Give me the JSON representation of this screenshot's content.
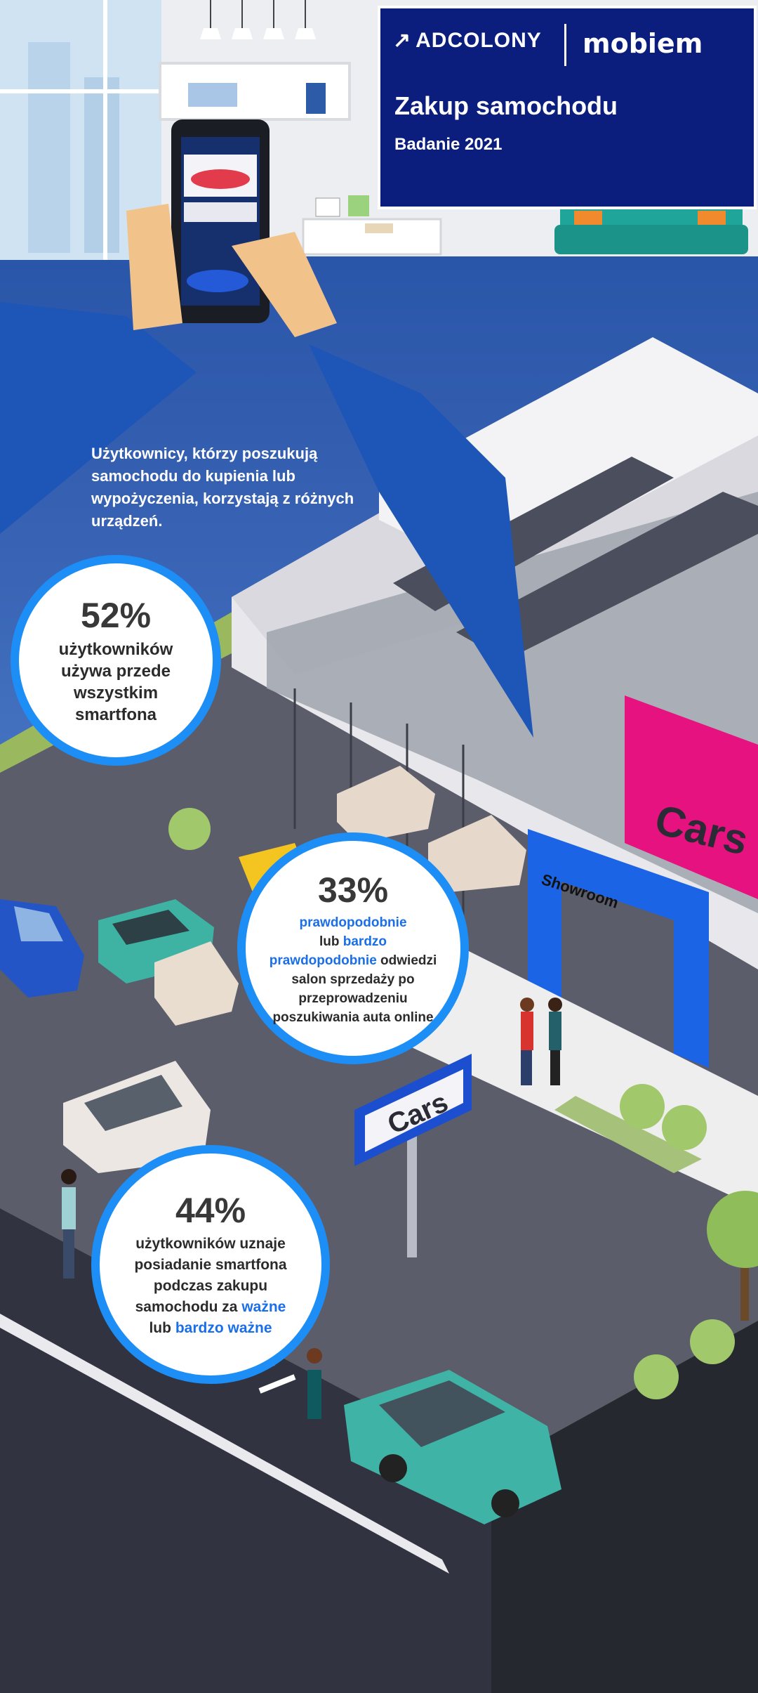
{
  "brand": {
    "logo_left": "ADCOLONY",
    "logo_right": "mobiem",
    "title": "Zakup samochodu",
    "subtitle": "Badanie 2021"
  },
  "intro": {
    "text": "Użytkownicy, którzy poszukują samochodu do kupienia lub wypożyczenia, korzystają z różnych urządzeń."
  },
  "stats": [
    {
      "value": "52%",
      "text": "użytkowników używa przede wszystkim smartfona"
    },
    {
      "value": "33%",
      "text_before": "prawdopodobnie",
      "text_mid1": "lub",
      "text_highlight": "bardzo prawdopodobnie",
      "text_after": "odwiedzi salon sprzedaży po przeprowadzeniu poszukiwania auta online"
    },
    {
      "value": "44%",
      "text_before": "użytkowników uznaje posiadanie smartfona podczas zakupu samochodu za",
      "highlight1": "ważne",
      "text_mid": "lub",
      "highlight2": "bardzo ważne"
    }
  ],
  "signs": {
    "building_sign": "Cars",
    "pole_sign": "Cars",
    "showroom": "Showroom"
  },
  "colors": {
    "brand_navy": "#0b1d7d",
    "accent_blue": "#1d8ef5",
    "sign_pink": "#e6127f"
  }
}
